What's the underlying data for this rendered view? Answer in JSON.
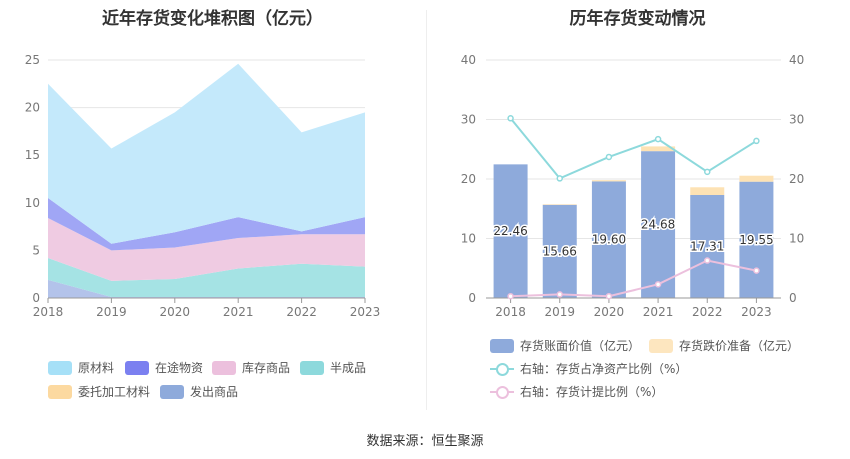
{
  "left_chart": {
    "title": "近年存货变化堆积图（亿元）",
    "legend": [
      {
        "name": "原材料",
        "color": "#a6e0f7"
      },
      {
        "name": "在途物资",
        "color": "#7b80f0"
      },
      {
        "name": "库存商品",
        "color": "#ecc0dd"
      },
      {
        "name": "半成品",
        "color": "#8dd9dc"
      },
      {
        "name": "委托加工材料",
        "color": "#fcd9a0"
      },
      {
        "name": "发出商品",
        "color": "#8eaadb"
      }
    ]
  },
  "right_chart": {
    "title": "历年存货变动情况",
    "legend": [
      {
        "name": "存货账面价值（亿元）",
        "color": "#8eaadb"
      },
      {
        "name": "存货跌价准备（亿元）",
        "color": "#fde6bf"
      },
      {
        "name": "右轴：存货占净资产比例（%）",
        "color": "#8dd9dc"
      },
      {
        "name": "右轴：存货计提比例（%）",
        "color": "#ecc0dd"
      }
    ]
  },
  "chart_data": [
    {
      "type": "area",
      "stacked": true,
      "title": "近年存货变化堆积图（亿元）",
      "x": [
        "2018",
        "2019",
        "2020",
        "2021",
        "2022",
        "2023"
      ],
      "ylim": [
        0,
        25
      ],
      "yticks": [
        0,
        5,
        10,
        15,
        20,
        25
      ],
      "grid": true,
      "legend_position": "bottom",
      "series": [
        {
          "name": "发出商品",
          "color": "#b3c3ea",
          "values": [
            1.9,
            0.1,
            0.1,
            0.1,
            0.1,
            0.1
          ]
        },
        {
          "name": "半成品",
          "color": "#a5e3e4",
          "values": [
            2.3,
            1.7,
            1.9,
            3.0,
            3.5,
            3.2
          ]
        },
        {
          "name": "库存商品",
          "color": "#efcbe2",
          "values": [
            4.2,
            3.2,
            3.3,
            3.2,
            3.1,
            3.4
          ]
        },
        {
          "name": "委托加工材料",
          "color": "#fcd9a0",
          "values": [
            0.0,
            0.0,
            0.0,
            0.0,
            0.0,
            0.0
          ]
        },
        {
          "name": "在途物资",
          "color": "#a0a6f5",
          "values": [
            2.1,
            0.7,
            1.6,
            2.2,
            0.3,
            1.8
          ]
        },
        {
          "name": "原材料",
          "color": "#c4e9fb",
          "values": [
            12.0,
            10.0,
            12.6,
            16.1,
            10.4,
            11.0
          ]
        }
      ]
    },
    {
      "type": "bar",
      "stacked": true,
      "title": "历年存货变动情况",
      "categories": [
        "2018",
        "2019",
        "2020",
        "2021",
        "2022",
        "2023"
      ],
      "ylim": [
        0,
        40
      ],
      "yticks": [
        0,
        10,
        20,
        30,
        40
      ],
      "y2lim": [
        0,
        40
      ],
      "y2ticks": [
        0,
        10,
        20,
        30,
        40
      ],
      "grid": true,
      "legend_position": "bottom",
      "series": [
        {
          "name": "存货账面价值（亿元）",
          "color": "#8eaadb",
          "values": [
            22.46,
            15.66,
            19.6,
            24.68,
            17.31,
            19.55
          ],
          "labels": [
            "22.46",
            "15.66",
            "19.60",
            "24.68",
            "17.31",
            "19.55"
          ]
        },
        {
          "name": "存货跌价准备（亿元）",
          "color": "#fde2b4",
          "values": [
            0.0,
            0.1,
            0.2,
            0.8,
            1.3,
            1.0
          ]
        }
      ],
      "line_series": [
        {
          "name": "右轴：存货占净资产比例（%）",
          "color": "#8dd9dc",
          "axis": "right",
          "values": [
            30.2,
            20.1,
            23.7,
            26.7,
            21.2,
            26.4
          ]
        },
        {
          "name": "右轴：存货计提比例（%）",
          "color": "#ecc0dd",
          "axis": "right",
          "values": [
            0.3,
            0.6,
            0.3,
            2.3,
            6.3,
            4.6
          ]
        }
      ]
    }
  ],
  "footer": {
    "source": "数据来源：恒生聚源"
  }
}
